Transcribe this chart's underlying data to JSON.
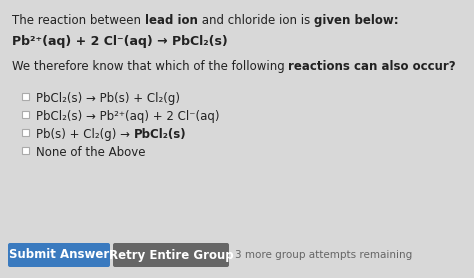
{
  "bg_color": "#d8d8d8",
  "content_bg": "#e0e0e0",
  "text_color": "#222222",
  "gray_text": "#666666",
  "button1_text": "Submit Answer",
  "button1_color": "#3a7abf",
  "button2_text": "Retry Entire Group",
  "button2_color": "#666666",
  "footer_text": "3 more group attempts remaining",
  "font_size": 8.5,
  "line1_normal1": "The reaction between ",
  "line1_bold1": "lead ion",
  "line1_normal2": " and chloride ion is ",
  "line1_bold2": "given below:",
  "equation": "Pb²⁺(aq) + 2 Cl⁻(aq) → PbCl₂(s)",
  "q_normal1": "We therefore know that which of the following ",
  "q_bold1": "reactions",
  "q_normal2": " ",
  "q_bold2": "can also occur?",
  "opt1_text": "PbCl₂(s) → Pb(s) + Cl₂(g)",
  "opt2_text": "PbCl₂(s) → Pb²⁺(aq) + 2 Cl⁻(aq)",
  "opt3_normal": "Pb(s) + Cl₂(g) → ",
  "opt3_bold": "PbCl₂(s)",
  "opt4_text": "None of the Above",
  "checkbox_color": "#aaaaaa"
}
